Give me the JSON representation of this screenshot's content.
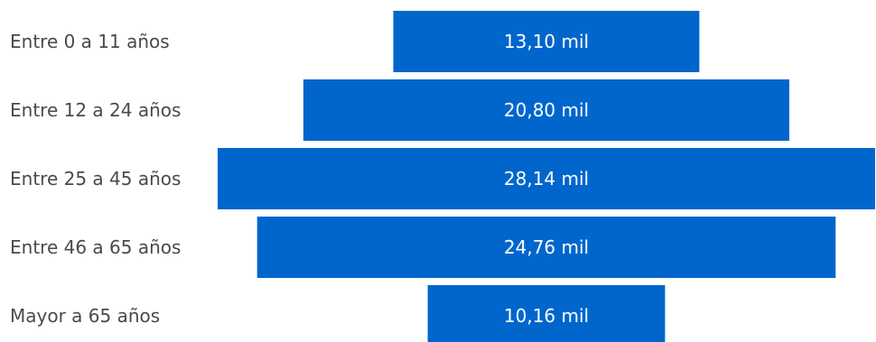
{
  "chart_data": {
    "type": "bar",
    "orientation": "funnel",
    "categories": [
      "Entre 0 a 11 años",
      "Entre 12 a 24 años",
      "Entre 25 a 45 años",
      "Entre 46 a 65 años",
      "Mayor a 65 años"
    ],
    "values": [
      13100,
      20800,
      28140,
      24760,
      10160
    ],
    "data_labels": [
      "13,10 mil",
      "20,80 mil",
      "28,14 mil",
      "24,76 mil",
      "10,16 mil"
    ],
    "bar_color": "#0066cc",
    "label_color": "#4a4a4a",
    "data_label_color": "#ffffff",
    "grid": false,
    "legend": "none"
  }
}
